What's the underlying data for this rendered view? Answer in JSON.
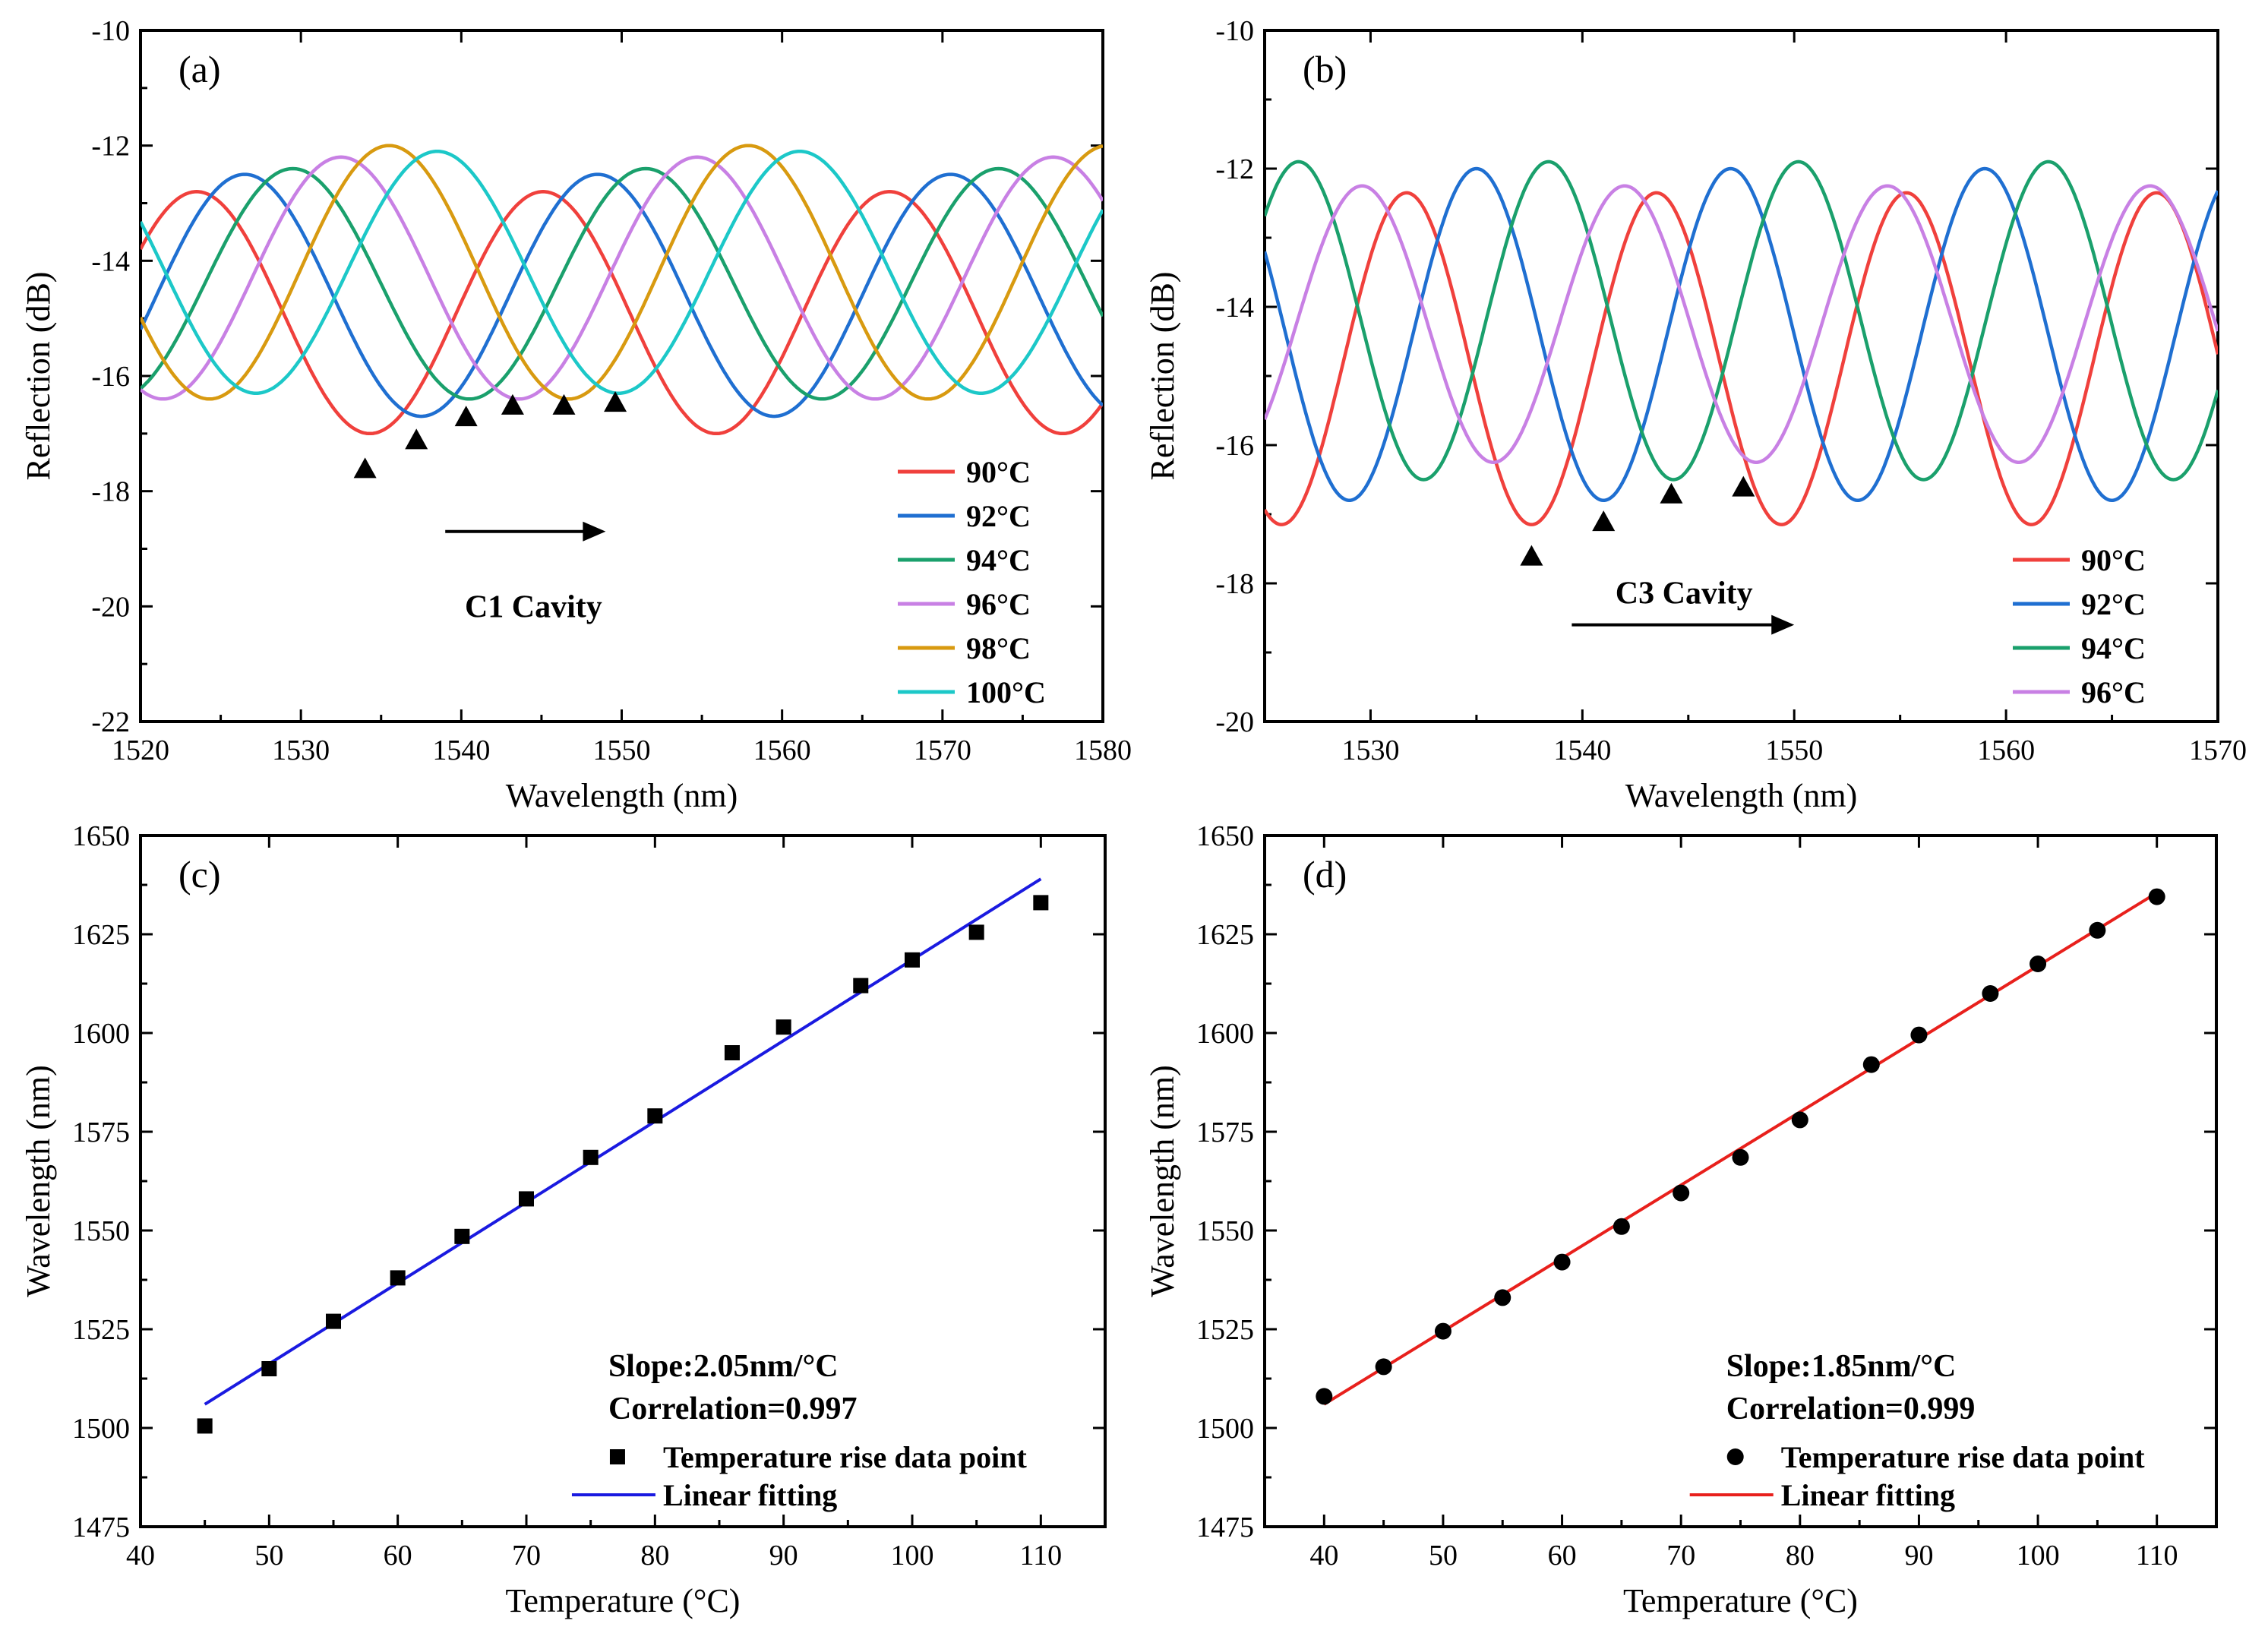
{
  "chart_data": [
    {
      "panel": "(a)",
      "type": "line",
      "xlabel": "Wavelength (nm)",
      "ylabel": "Reflection (dB)",
      "xlim": [
        1520,
        1580
      ],
      "ylim": [
        -22,
        -10
      ],
      "xticks": [
        1520,
        1530,
        1540,
        1550,
        1560,
        1570,
        1580
      ],
      "yticks": [
        -22,
        -20,
        -18,
        -16,
        -14,
        -12,
        -10
      ],
      "annotation": "C1 Cavity",
      "legend_position": "bottom-right",
      "series": [
        {
          "name": "90°C",
          "color": "#f0403c",
          "fsr": 21.6,
          "peak": 1523.5,
          "mean": -14.9,
          "amp": 2.1
        },
        {
          "name": "92°C",
          "color": "#1f6fd1",
          "fsr": 22.0,
          "peak": 1526.5,
          "mean": -14.6,
          "amp": 2.1
        },
        {
          "name": "94°C",
          "color": "#1aa06c",
          "fsr": 22.0,
          "peak": 1529.5,
          "mean": -14.4,
          "amp": 2.0
        },
        {
          "name": "96°C",
          "color": "#c880e4",
          "fsr": 22.2,
          "peak": 1532.5,
          "mean": -14.3,
          "amp": 2.1
        },
        {
          "name": "98°C",
          "color": "#d89a10",
          "fsr": 22.4,
          "peak": 1535.5,
          "mean": -14.2,
          "amp": 2.2
        },
        {
          "name": "100°C",
          "color": "#1cc8c8",
          "fsr": 22.6,
          "peak": 1538.5,
          "mean": -14.2,
          "amp": 2.1
        }
      ],
      "markers": [
        {
          "x": 1534,
          "y": -17.6
        },
        {
          "x": 1537.2,
          "y": -17.1
        },
        {
          "x": 1540.3,
          "y": -16.7
        },
        {
          "x": 1543.2,
          "y": -16.5
        },
        {
          "x": 1546.4,
          "y": -16.5
        },
        {
          "x": 1549.6,
          "y": -16.45
        }
      ],
      "arrow": {
        "x0": 1539,
        "x1": 1549,
        "y": -18.7
      }
    },
    {
      "panel": "(b)",
      "type": "line",
      "xlabel": "Wavelength (nm)",
      "ylabel": "Reflection (dB)",
      "xlim": [
        1525,
        1570
      ],
      "ylim": [
        -20,
        -10
      ],
      "xticks": [
        1530,
        1540,
        1550,
        1560,
        1570
      ],
      "yticks": [
        -20,
        -18,
        -16,
        -14,
        -12,
        -10
      ],
      "annotation": "C3 Cavity",
      "legend_position": "bottom-right",
      "series": [
        {
          "name": "90°C",
          "color": "#f0403c",
          "fsr": 11.8,
          "peak": 1531.7,
          "mean": -14.75,
          "amp": 2.4
        },
        {
          "name": "92°C",
          "color": "#1f6fd1",
          "fsr": 12.0,
          "peak": 1535.0,
          "mean": -14.4,
          "amp": 2.4
        },
        {
          "name": "94°C",
          "color": "#1aa06c",
          "fsr": 11.8,
          "peak": 1526.6,
          "mean": -14.2,
          "amp": 2.3
        },
        {
          "name": "96°C",
          "color": "#c880e4",
          "fsr": 12.4,
          "peak": 1529.6,
          "mean": -14.25,
          "amp": 2.0
        }
      ],
      "markers": [
        {
          "x": 1537.6,
          "y": -17.6
        },
        {
          "x": 1541,
          "y": -17.1
        },
        {
          "x": 1544.2,
          "y": -16.7
        },
        {
          "x": 1547.6,
          "y": -16.6
        }
      ],
      "arrow": {
        "x0": 1539.5,
        "x1": 1550,
        "y": -18.6
      }
    },
    {
      "panel": "(c)",
      "type": "scatter",
      "xlabel": "Temperature (°C)",
      "ylabel": "Wavelength (nm)",
      "xlim": [
        40,
        115
      ],
      "ylim": [
        1475,
        1650
      ],
      "xticks": [
        40,
        50,
        60,
        70,
        80,
        90,
        100,
        110
      ],
      "yticks": [
        1475,
        1500,
        1525,
        1550,
        1575,
        1600,
        1625,
        1650
      ],
      "marker": "square",
      "point_color": "#000000",
      "points": [
        [
          45,
          1500.5
        ],
        [
          50,
          1515
        ],
        [
          55,
          1527
        ],
        [
          60,
          1538
        ],
        [
          65,
          1548.5
        ],
        [
          70,
          1558
        ],
        [
          75,
          1568.5
        ],
        [
          80,
          1579
        ],
        [
          86,
          1595
        ],
        [
          90,
          1601.5
        ],
        [
          96,
          1612
        ],
        [
          100,
          1618.5
        ],
        [
          105,
          1625.5
        ],
        [
          110,
          1633
        ]
      ],
      "fit": {
        "x": [
          45,
          110
        ],
        "y": [
          1506,
          1639
        ],
        "color": "#1a1ae0"
      },
      "slope_text": "Slope:2.05nm/°C",
      "corr_text": "Correlation=0.997",
      "legend": [
        "Temperature rise data point",
        "Linear fitting"
      ]
    },
    {
      "panel": "(d)",
      "type": "scatter",
      "xlabel": "Temperature (°C)",
      "ylabel": "Wavelength (nm)",
      "xlim": [
        35,
        115
      ],
      "ylim": [
        1475,
        1650
      ],
      "xticks": [
        40,
        50,
        60,
        70,
        80,
        90,
        100,
        110
      ],
      "yticks": [
        1475,
        1500,
        1525,
        1550,
        1575,
        1600,
        1625,
        1650
      ],
      "marker": "circle",
      "point_color": "#000000",
      "points": [
        [
          40,
          1508
        ],
        [
          45,
          1515.5
        ],
        [
          50,
          1524.5
        ],
        [
          55,
          1533
        ],
        [
          60,
          1542
        ],
        [
          65,
          1551
        ],
        [
          70,
          1559.5
        ],
        [
          75,
          1568.5
        ],
        [
          80,
          1578
        ],
        [
          86,
          1592
        ],
        [
          90,
          1599.5
        ],
        [
          96,
          1610
        ],
        [
          100,
          1617.5
        ],
        [
          105,
          1626
        ],
        [
          110,
          1634.5
        ]
      ],
      "fit": {
        "x": [
          40,
          110
        ],
        "y": [
          1506,
          1635.5
        ],
        "color": "#e8201c"
      },
      "slope_text": "Slope:1.85nm/°C",
      "corr_text": "Correlation=0.999",
      "legend": [
        "Temperature rise data point",
        "Linear fitting"
      ]
    }
  ]
}
